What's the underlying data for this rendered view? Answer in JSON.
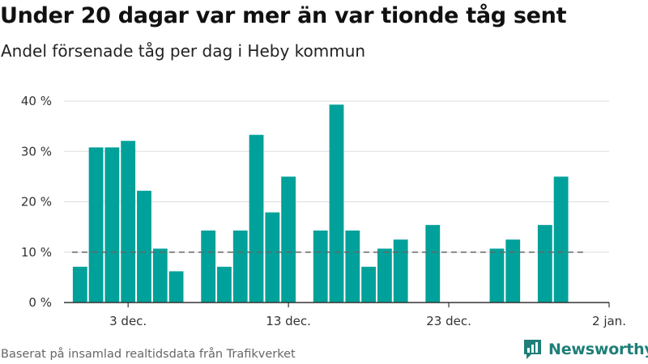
{
  "header": {
    "title": "Under 20 dagar var mer än var tionde tåg sent",
    "subtitle": "Andel försenade tåg per dag i Heby kommun"
  },
  "footer": {
    "source": "Baserat på insamlad realtidsdata från Trafikverket",
    "brand": "Newsworthy"
  },
  "colors": {
    "bar": "#00a19a",
    "reference_line": "#666666",
    "grid": "#dddddd",
    "axis": "#333333",
    "brand": "#1e7f78"
  },
  "icons": {
    "brand_logo": "newsworthy-logo-icon"
  },
  "chart_data": {
    "type": "bar",
    "title": "Under 20 dagar var mer än var tionde tåg sent",
    "subtitle": "Andel försenade tåg per dag i Heby kommun",
    "xlabel": "",
    "ylabel": "",
    "x": [
      "2023-11-30",
      "2023-12-01",
      "2023-12-02",
      "2023-12-03",
      "2023-12-04",
      "2023-12-05",
      "2023-12-06",
      "2023-12-07",
      "2023-12-08",
      "2023-12-09",
      "2023-12-10",
      "2023-12-11",
      "2023-12-12",
      "2023-12-13",
      "2023-12-14",
      "2023-12-15",
      "2023-12-16",
      "2023-12-17",
      "2023-12-18",
      "2023-12-19",
      "2023-12-20",
      "2023-12-21",
      "2023-12-22",
      "2023-12-23",
      "2023-12-24",
      "2023-12-25",
      "2023-12-26",
      "2023-12-27",
      "2023-12-28",
      "2023-12-29",
      "2023-12-30",
      "2023-12-31"
    ],
    "values": [
      7.1,
      30.8,
      30.8,
      32.1,
      22.2,
      10.7,
      6.2,
      null,
      14.3,
      7.1,
      14.3,
      33.3,
      17.9,
      25.0,
      null,
      14.3,
      39.3,
      14.3,
      7.1,
      10.7,
      12.5,
      null,
      15.4,
      null,
      null,
      null,
      10.7,
      12.5,
      null,
      15.4,
      25.0,
      null
    ],
    "ylim": [
      0,
      40
    ],
    "yticks": [
      0,
      10,
      20,
      30,
      40
    ],
    "ytick_labels": [
      "0 %",
      "10 %",
      "20 %",
      "30 %",
      "40 %"
    ],
    "xticks": [
      "2023-12-03",
      "2023-12-13",
      "2023-12-23",
      "2024-01-02"
    ],
    "xtick_labels": [
      "3 dec.",
      "13 dec.",
      "23 dec.",
      "2 jan."
    ],
    "xlim": [
      "2023-11-29",
      "2024-01-02"
    ],
    "reference_line": {
      "value": 10,
      "style": "dashed"
    },
    "grid": "horizontal",
    "legend": "none"
  }
}
